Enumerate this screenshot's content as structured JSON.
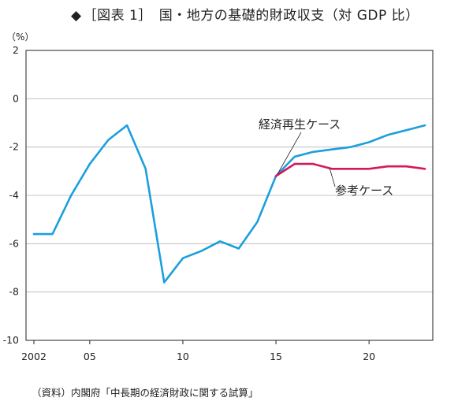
{
  "title": {
    "mark": "◆",
    "text": "［図表 1］　国・地方の基礎的財政収支（対 GDP 比）"
  },
  "source_note": "（資料）内閣府「中長期の経済財政に関する試算」",
  "chart_data": {
    "type": "line",
    "unit_label": "（%）",
    "x_tick_labels": [
      "2002",
      "05",
      "10",
      "15",
      "20"
    ],
    "x_tick_years": [
      2002,
      2005,
      2010,
      2015,
      2020
    ],
    "xlim": [
      2002,
      2023
    ],
    "ylim": [
      -10,
      2
    ],
    "y_ticks": [
      2,
      0,
      -2,
      -4,
      -6,
      -8,
      -10
    ],
    "y_tick_labels": [
      "2",
      "0",
      "-2",
      "-4",
      "-6",
      "-8",
      "-10"
    ],
    "grid": true,
    "series": [
      {
        "name": "経済再生ケース",
        "color": "#1b9fdc",
        "x": [
          2002,
          2003,
          2004,
          2005,
          2006,
          2007,
          2008,
          2009,
          2010,
          2011,
          2012,
          2013,
          2014,
          2015,
          2016,
          2017,
          2018,
          2019,
          2020,
          2021,
          2022,
          2023
        ],
        "values": [
          -5.6,
          -5.6,
          -4.0,
          -2.7,
          -1.7,
          -1.1,
          -2.9,
          -7.6,
          -6.6,
          -6.3,
          -5.9,
          -6.2,
          -5.1,
          -3.2,
          -2.4,
          -2.2,
          -2.1,
          -2.0,
          -1.8,
          -1.5,
          -1.3,
          -1.1
        ]
      },
      {
        "name": "参考ケース",
        "color": "#d6175e",
        "x": [
          2015,
          2016,
          2017,
          2018,
          2019,
          2020,
          2021,
          2022,
          2023
        ],
        "values": [
          -3.2,
          -2.7,
          -2.7,
          -2.9,
          -2.9,
          -2.9,
          -2.8,
          -2.8,
          -2.9
        ]
      }
    ]
  }
}
